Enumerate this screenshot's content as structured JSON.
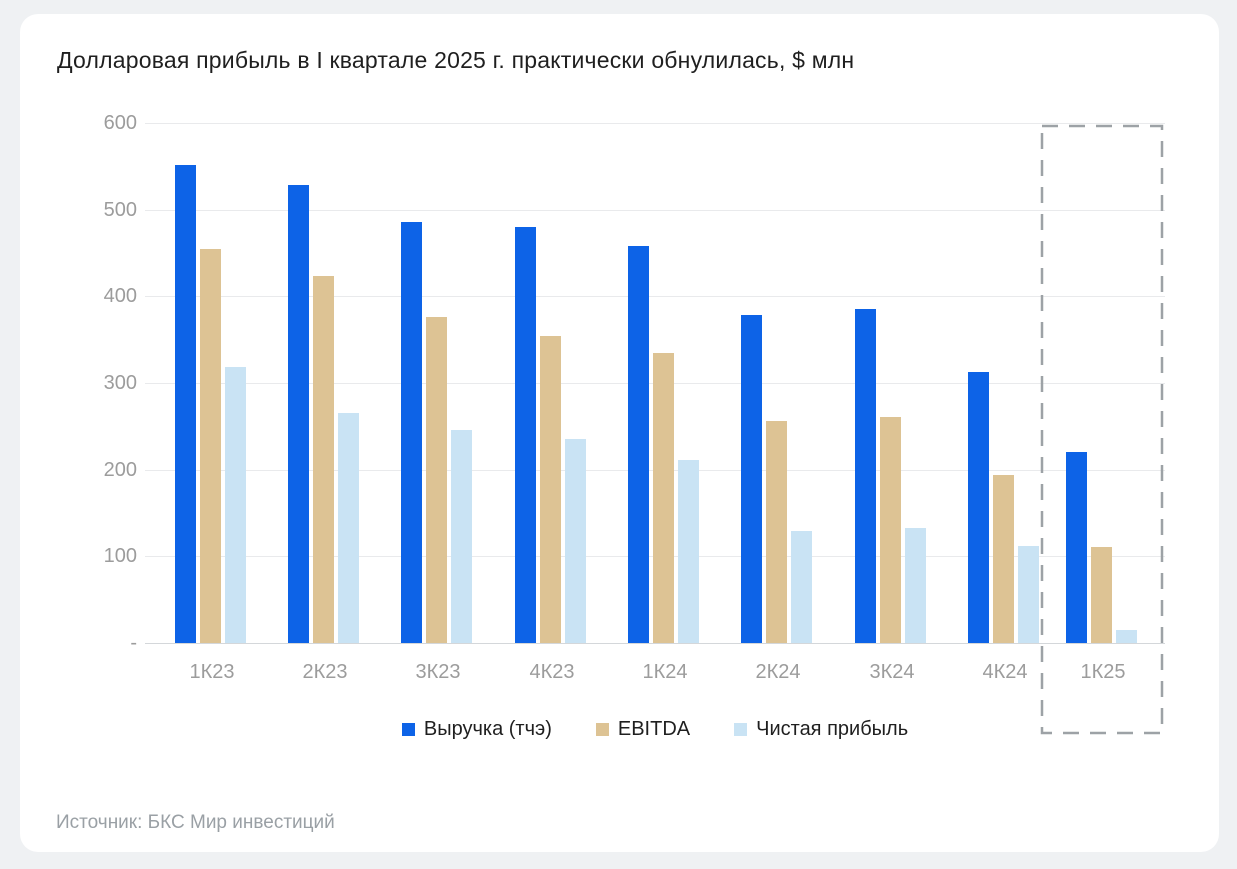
{
  "title": "Долларовая прибыль в I квартале 2025 г. практически обнулилась, $ млн",
  "source": "Источник: БКС Мир инвестиций",
  "colors": {
    "revenue": "#0d63e7",
    "ebitda": "#ddc394",
    "net_profit": "#c9e3f4",
    "gridline": "#e9eaec",
    "axis_text": "#9c9c9c",
    "highlight_box": "#9da2a6"
  },
  "chart_data": {
    "type": "bar",
    "title": "Долларовая прибыль в I квартале 2025 г. практически обнулилась, $ млн",
    "categories": [
      "1К23",
      "2К23",
      "3К23",
      "4К23",
      "1К24",
      "2К24",
      "3К24",
      "4К24",
      "1К25"
    ],
    "series": [
      {
        "name": "Выручка (тчэ)",
        "color": "#0d63e7",
        "values": [
          552,
          529,
          486,
          480,
          458,
          378,
          385,
          313,
          221
        ]
      },
      {
        "name": "EBITDA",
        "color": "#ddc394",
        "values": [
          455,
          424,
          376,
          354,
          335,
          256,
          261,
          194,
          111
        ]
      },
      {
        "name": "Чистая прибыль",
        "color": "#c9e3f4",
        "values": [
          318,
          265,
          246,
          235,
          211,
          129,
          133,
          112,
          15
        ]
      }
    ],
    "xlabel": "",
    "ylabel": "",
    "ylim": [
      0,
      600
    ],
    "y_step": 100,
    "y_tick_labels": [
      "600",
      "500",
      "400",
      "300",
      "200",
      "100",
      "-"
    ],
    "grid": true,
    "legend_position": "bottom",
    "highlight": {
      "category": "1К25",
      "style": "dashed-box"
    }
  }
}
